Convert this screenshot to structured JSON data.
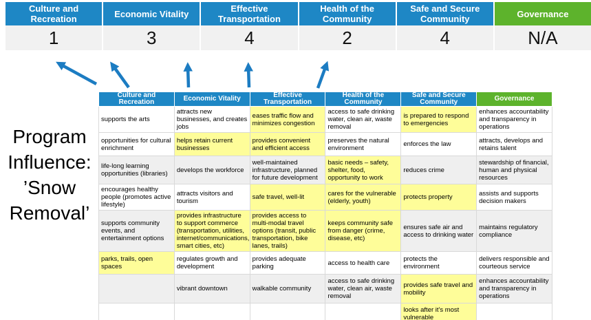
{
  "colors": {
    "blue": "#1E87C5",
    "green": "#5DB32C",
    "score_bg": "#F1F1F1",
    "row_alt": "#EFEFEF",
    "highlight": "#FEFD99",
    "border": "#D9D9D9",
    "arrow": "#1C7CC2"
  },
  "program_title": {
    "text": "Program\nInfluence:\n’Snow\nRemoval’"
  },
  "priorities": [
    {
      "label": "Culture and Recreation",
      "score": "1",
      "theme": "blue"
    },
    {
      "label": "Economic Vitality",
      "score": "3",
      "theme": "blue"
    },
    {
      "label": "Effective Transportation",
      "score": "4",
      "theme": "blue"
    },
    {
      "label": "Health of the Community",
      "score": "2",
      "theme": "blue"
    },
    {
      "label": "Safe and Secure Community",
      "score": "4",
      "theme": "blue"
    },
    {
      "label": "Governance",
      "score": "N/A",
      "theme": "green"
    }
  ],
  "matrix": {
    "columns": [
      {
        "label": "Culture and Recreation",
        "theme": "blue"
      },
      {
        "label": "Economic Vitality",
        "theme": "blue"
      },
      {
        "label": "Effective Transportation",
        "theme": "blue"
      },
      {
        "label": "Health of the Community",
        "theme": "blue"
      },
      {
        "label": "Safe and Secure Community",
        "theme": "blue"
      },
      {
        "label": "Governance",
        "theme": "green"
      }
    ],
    "rows": [
      {
        "shade": "white",
        "cells": [
          {
            "text": "supports the arts",
            "highlight": false
          },
          {
            "text": "attracts new businesses, and creates jobs",
            "highlight": false
          },
          {
            "text": "eases traffic flow and minimizes congestion",
            "highlight": true
          },
          {
            "text": "access to safe drinking water, clean air, waste removal",
            "highlight": false
          },
          {
            "text": "is prepared to respond to emergencies",
            "highlight": true
          },
          {
            "text": "enhances accountability and transparency in operations",
            "highlight": false
          }
        ]
      },
      {
        "shade": "white",
        "cells": [
          {
            "text": "opportunities for cultural enrichment",
            "highlight": false
          },
          {
            "text": "helps retain current businesses",
            "highlight": true
          },
          {
            "text": "provides convenient and efficient access",
            "highlight": true
          },
          {
            "text": "preserves the natural environment",
            "highlight": false
          },
          {
            "text": "enforces the law",
            "highlight": false
          },
          {
            "text": "attracts, develops and retains talent",
            "highlight": false
          }
        ]
      },
      {
        "shade": "gray",
        "cells": [
          {
            "text": "life-long learning opportunities (libraries)",
            "highlight": false
          },
          {
            "text": "develops the workforce",
            "highlight": false
          },
          {
            "text": "well-maintained infrastructure, planned for future development",
            "highlight": false
          },
          {
            "text": "basic needs – safety, shelter, food, opportunity to work",
            "highlight": true
          },
          {
            "text": "reduces crime",
            "highlight": false
          },
          {
            "text": "stewardship of financial, human and physical resources",
            "highlight": false
          }
        ]
      },
      {
        "shade": "white",
        "cells": [
          {
            "text": "encourages healthy people (promotes active lifestyle)",
            "highlight": false
          },
          {
            "text": "attracts visitors and tourism",
            "highlight": false
          },
          {
            "text": "safe travel, well-lit",
            "highlight": true
          },
          {
            "text": "cares for the vulnerable (elderly, youth)",
            "highlight": true
          },
          {
            "text": "protects property",
            "highlight": true
          },
          {
            "text": "assists and supports decision makers",
            "highlight": false
          }
        ]
      },
      {
        "shade": "gray",
        "cells": [
          {
            "text": "supports community events, and entertainment options",
            "highlight": false
          },
          {
            "text": "provides infrastructure to support commerce (transportation, utilities, internet/communications, smart cities, etc)",
            "highlight": true
          },
          {
            "text": "provides access to multi-modal travel options (transit, public transportation, bike lanes, trails)",
            "highlight": true
          },
          {
            "text": "keeps community safe from danger (crime, disease, etc)",
            "highlight": true
          },
          {
            "text": "ensures safe air and access to drinking water",
            "highlight": false
          },
          {
            "text": "maintains regulatory compliance",
            "highlight": false
          }
        ]
      },
      {
        "shade": "white",
        "cells": [
          {
            "text": "parks, trails, open spaces",
            "highlight": true
          },
          {
            "text": "regulates growth and development",
            "highlight": false
          },
          {
            "text": "provides adequate parking",
            "highlight": false
          },
          {
            "text": "access to health care",
            "highlight": false
          },
          {
            "text": "protects the environment",
            "highlight": false
          },
          {
            "text": "delivers responsible and courteous service",
            "highlight": false
          }
        ]
      },
      {
        "shade": "gray",
        "cells": [
          {
            "text": "",
            "highlight": false
          },
          {
            "text": "vibrant downtown",
            "highlight": false
          },
          {
            "text": "walkable community",
            "highlight": false
          },
          {
            "text": "access to safe drinking water, clean air, waste removal",
            "highlight": false
          },
          {
            "text": "provides safe travel and mobility",
            "highlight": true
          },
          {
            "text": "enhances accountability and transparency in operations",
            "highlight": false
          }
        ]
      },
      {
        "shade": "white",
        "cells": [
          {
            "text": "",
            "highlight": false
          },
          {
            "text": "",
            "highlight": false
          },
          {
            "text": "",
            "highlight": false
          },
          {
            "text": "",
            "highlight": false
          },
          {
            "text": "looks after it's most vulnerable",
            "highlight": true
          },
          {
            "text": "",
            "highlight": false
          }
        ]
      }
    ]
  }
}
